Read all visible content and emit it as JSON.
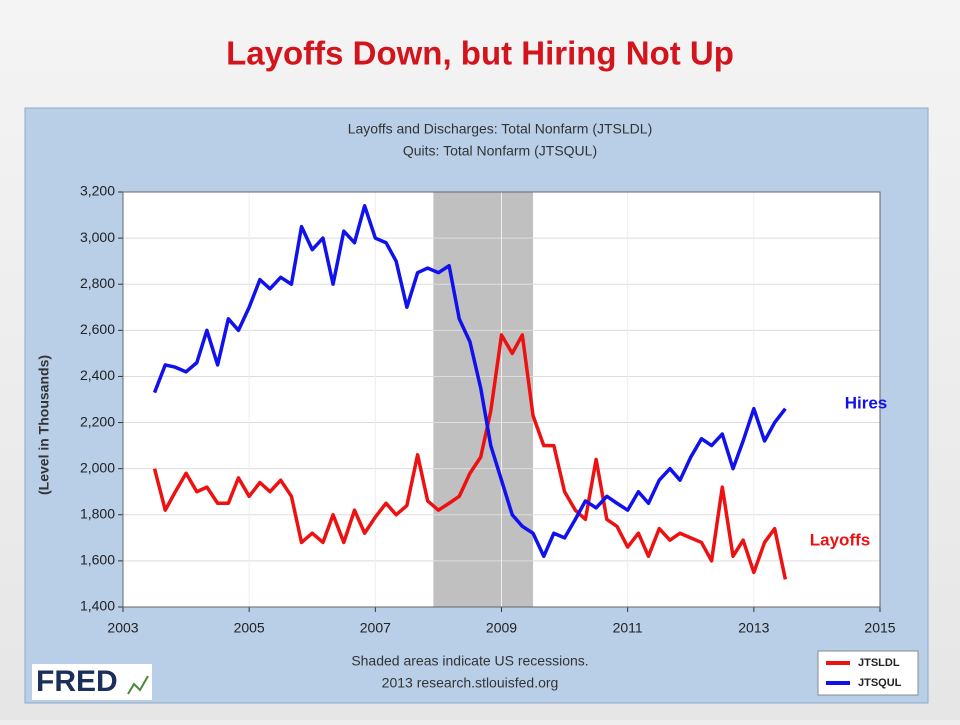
{
  "slide_title": "Layoffs Down, but Hiring Not Up",
  "chart_data": {
    "type": "line",
    "titles": [
      "Layoffs and Discharges: Total Nonfarm (JTSLDL)",
      "Quits: Total Nonfarm (JTSQUL)"
    ],
    "ylabel": "(Level in Thousands)",
    "xlim": [
      2003,
      2015
    ],
    "xticks": [
      2003,
      2005,
      2007,
      2009,
      2011,
      2013,
      2015
    ],
    "ylim": [
      1400,
      3200
    ],
    "yticks": [
      {
        "value": 1400,
        "label": "1,400"
      },
      {
        "value": 1600,
        "label": "1,600"
      },
      {
        "value": 1800,
        "label": "1,800"
      },
      {
        "value": 2000,
        "label": "2,000"
      },
      {
        "value": 2200,
        "label": "2,200"
      },
      {
        "value": 2400,
        "label": "2,400"
      },
      {
        "value": 2600,
        "label": "2,600"
      },
      {
        "value": 2800,
        "label": "2,800"
      },
      {
        "value": 3000,
        "label": "3,000"
      },
      {
        "value": 3200,
        "label": "3,200"
      }
    ],
    "grid": true,
    "recession": [
      2007.92,
      2009.5
    ],
    "recession_color": "#c0c0c0",
    "x": [
      2003.5,
      2003.67,
      2003.83,
      2004.0,
      2004.17,
      2004.33,
      2004.5,
      2004.67,
      2004.83,
      2005.0,
      2005.17,
      2005.33,
      2005.5,
      2005.67,
      2005.83,
      2006.0,
      2006.17,
      2006.33,
      2006.5,
      2006.67,
      2006.83,
      2007.0,
      2007.17,
      2007.33,
      2007.5,
      2007.67,
      2007.83,
      2008.0,
      2008.17,
      2008.33,
      2008.5,
      2008.67,
      2008.83,
      2009.0,
      2009.17,
      2009.33,
      2009.5,
      2009.67,
      2009.83,
      2010.0,
      2010.17,
      2010.33,
      2010.5,
      2010.67,
      2010.83,
      2011.0,
      2011.17,
      2011.33,
      2011.5,
      2011.67,
      2011.83,
      2012.0,
      2012.17,
      2012.33,
      2012.5,
      2012.67,
      2012.83,
      2013.0,
      2013.17,
      2013.33,
      2013.5
    ],
    "series": [
      {
        "name": "JTSLDL",
        "color": "#ee1111",
        "values": [
          2000,
          1820,
          1900,
          1980,
          1900,
          1920,
          1850,
          1850,
          1960,
          1880,
          1940,
          1900,
          1950,
          1880,
          1680,
          1720,
          1680,
          1800,
          1680,
          1820,
          1720,
          1790,
          1850,
          1800,
          1840,
          2060,
          1860,
          1820,
          1850,
          1880,
          1980,
          2050,
          2250,
          2580,
          2500,
          2580,
          2230,
          2100,
          2100,
          1900,
          1820,
          1780,
          2040,
          1780,
          1750,
          1660,
          1720,
          1620,
          1740,
          1690,
          1720,
          1700,
          1680,
          1600,
          1920,
          1620,
          1690,
          1550,
          1680,
          1740,
          1520
        ]
      },
      {
        "name": "JTSQUL",
        "color": "#1111ee",
        "values": [
          2330,
          2450,
          2440,
          2420,
          2460,
          2600,
          2450,
          2650,
          2600,
          2700,
          2820,
          2780,
          2830,
          2800,
          3050,
          2950,
          3000,
          2800,
          3030,
          2980,
          3140,
          3000,
          2980,
          2900,
          2700,
          2850,
          2870,
          2850,
          2880,
          2650,
          2550,
          2350,
          2100,
          1950,
          1800,
          1750,
          1720,
          1620,
          1720,
          1700,
          1780,
          1860,
          1830,
          1880,
          1850,
          1820,
          1900,
          1850,
          1950,
          2000,
          1950,
          2050,
          2130,
          2100,
          2150,
          2000,
          2120,
          2260,
          2120,
          2200,
          2260
        ]
      }
    ],
    "annotations": [
      {
        "text": "Hires",
        "color": "#1111ee"
      },
      {
        "text": "Layoffs",
        "color": "#ee1111"
      }
    ],
    "note": "Shaded areas indicate US recessions.",
    "source": "2013 research.stlouisfed.org",
    "logo": "FRED"
  }
}
